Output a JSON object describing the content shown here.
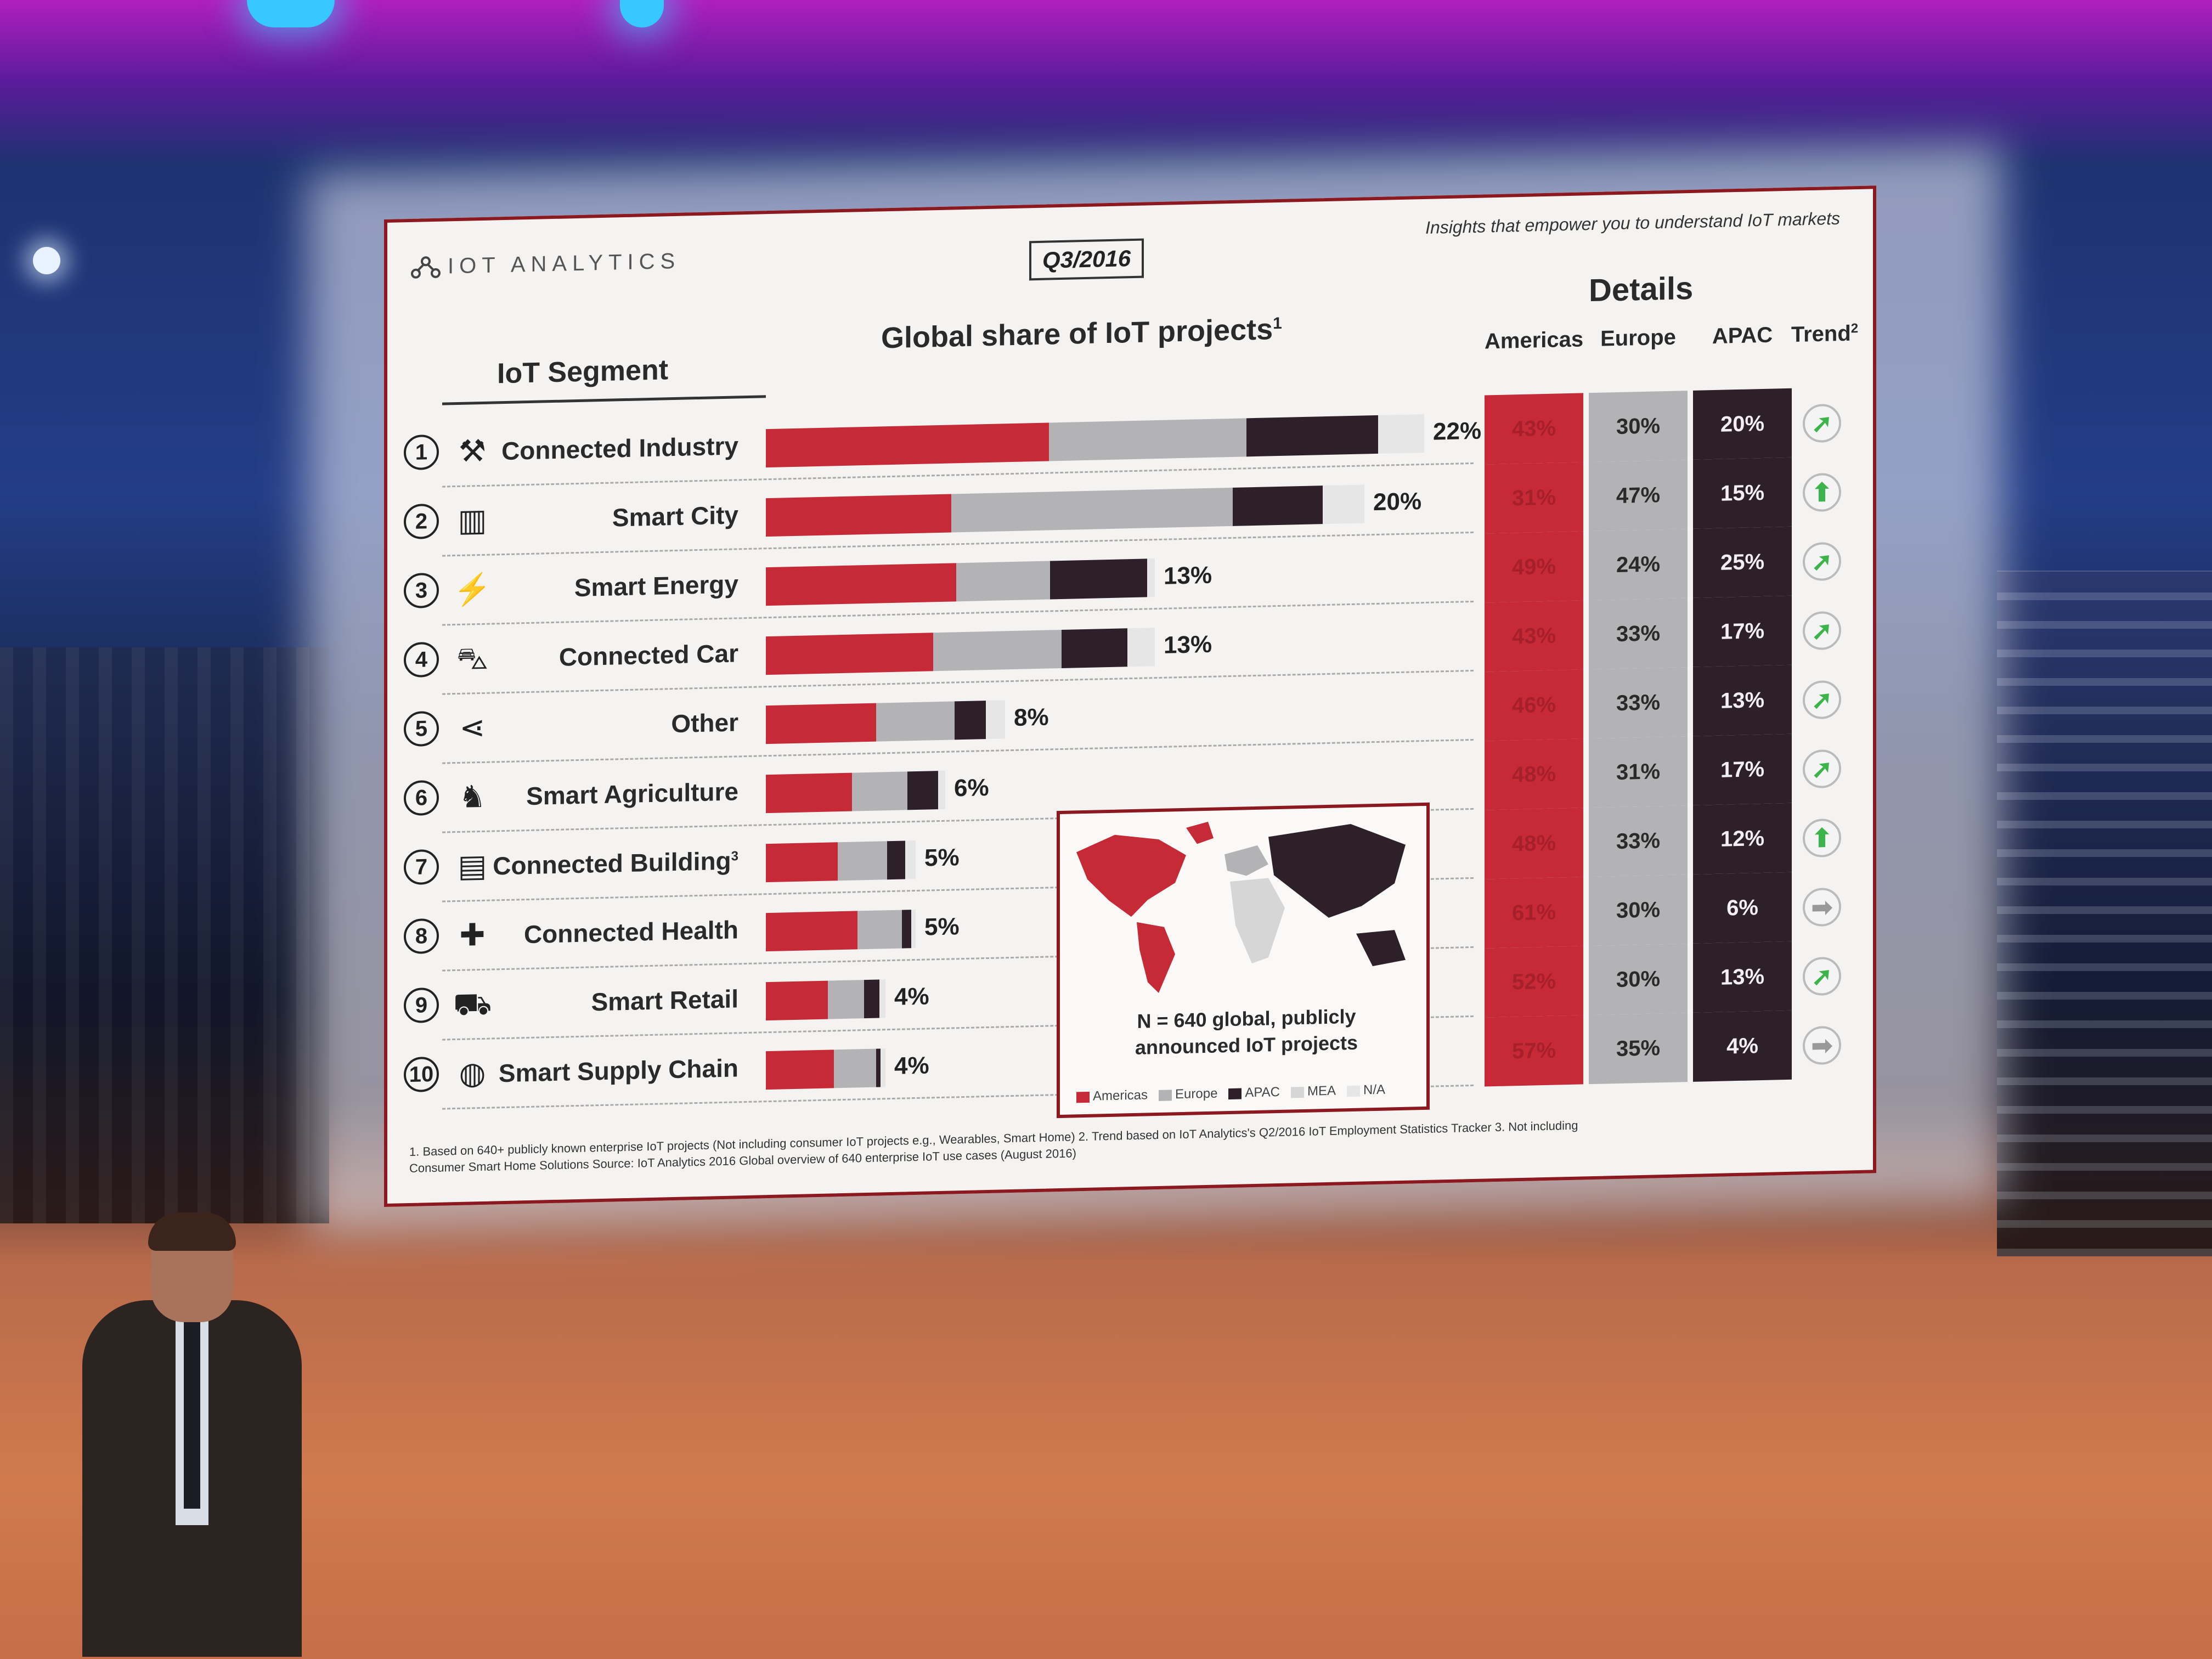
{
  "logo_text": "IOT ANALYTICS",
  "quarter": "Q3/2016",
  "tagline": "Insights that empower you to understand IoT markets",
  "headers": {
    "segment": "IoT Segment",
    "share": "Global share of IoT projects",
    "share_sup": "1",
    "details": "Details",
    "americas": "Americas",
    "europe": "Europe",
    "apac": "APAC",
    "trend": "Trend",
    "trend_sup": "2"
  },
  "colors": {
    "americas": "#c62a36",
    "europe": "#b3b3b6",
    "apac": "#2e2029",
    "mea": "#d6d6d6",
    "na": "#e6e6e6"
  },
  "segments": [
    {
      "num": "1",
      "icon": "excavator-icon",
      "glyph": "⚒",
      "label": "Connected Industry",
      "sup": "",
      "share_label": "22%",
      "share": 22,
      "am_label": "43%",
      "eu_label": "30%",
      "ap_label": "20%",
      "am": 43,
      "eu": 30,
      "ap": 20,
      "trend": "up-right",
      "trend_glyph": "➚"
    },
    {
      "num": "2",
      "icon": "city-icon",
      "glyph": "▥",
      "label": "Smart City",
      "sup": "",
      "share_label": "20%",
      "share": 20,
      "am_label": "31%",
      "eu_label": "47%",
      "ap_label": "15%",
      "am": 31,
      "eu": 47,
      "ap": 15,
      "trend": "up",
      "trend_glyph": "⬆"
    },
    {
      "num": "3",
      "icon": "plug-icon",
      "glyph": "⚡",
      "label": "Smart Energy",
      "sup": "",
      "share_label": "13%",
      "share": 13,
      "am_label": "49%",
      "eu_label": "24%",
      "ap_label": "25%",
      "am": 49,
      "eu": 24,
      "ap": 25,
      "trend": "up-right",
      "trend_glyph": "➚"
    },
    {
      "num": "4",
      "icon": "car-icon",
      "glyph": "⛍",
      "label": "Connected Car",
      "sup": "",
      "share_label": "13%",
      "share": 13,
      "am_label": "43%",
      "eu_label": "33%",
      "ap_label": "17%",
      "am": 43,
      "eu": 33,
      "ap": 17,
      "trend": "up-right",
      "trend_glyph": "➚"
    },
    {
      "num": "5",
      "icon": "share-icon",
      "glyph": "⋖",
      "label": "Other",
      "sup": "",
      "share_label": "8%",
      "share": 8,
      "am_label": "46%",
      "eu_label": "33%",
      "ap_label": "13%",
      "am": 46,
      "eu": 33,
      "ap": 13,
      "trend": "up-right",
      "trend_glyph": "➚"
    },
    {
      "num": "6",
      "icon": "cow-icon",
      "glyph": "♞",
      "label": "Smart Agriculture",
      "sup": "",
      "share_label": "6%",
      "share": 6,
      "am_label": "48%",
      "eu_label": "31%",
      "ap_label": "17%",
      "am": 48,
      "eu": 31,
      "ap": 17,
      "trend": "up-right",
      "trend_glyph": "➚"
    },
    {
      "num": "7",
      "icon": "building-icon",
      "glyph": "▤",
      "label": "Connected Building",
      "sup": "3",
      "share_label": "5%",
      "share": 5,
      "am_label": "48%",
      "eu_label": "33%",
      "ap_label": "12%",
      "am": 48,
      "eu": 33,
      "ap": 12,
      "trend": "up",
      "trend_glyph": "⬆"
    },
    {
      "num": "8",
      "icon": "medkit-icon",
      "glyph": "✚",
      "label": "Connected Health",
      "sup": "",
      "share_label": "5%",
      "share": 5,
      "am_label": "61%",
      "eu_label": "30%",
      "ap_label": "6%",
      "am": 61,
      "eu": 30,
      "ap": 6,
      "trend": "right",
      "trend_glyph": "➡"
    },
    {
      "num": "9",
      "icon": "cart-icon",
      "glyph": "⛟",
      "label": "Smart Retail",
      "sup": "",
      "share_label": "4%",
      "share": 4,
      "am_label": "52%",
      "eu_label": "30%",
      "ap_label": "13%",
      "am": 52,
      "eu": 30,
      "ap": 13,
      "trend": "up-right",
      "trend_glyph": "➚"
    },
    {
      "num": "10",
      "icon": "globe-truck-icon",
      "glyph": "◍",
      "label": "Smart Supply Chain",
      "sup": "",
      "share_label": "4%",
      "share": 4,
      "am_label": "57%",
      "eu_label": "35%",
      "ap_label": "4%",
      "am": 57,
      "eu": 35,
      "ap": 4,
      "trend": "right",
      "trend_glyph": "➡"
    }
  ],
  "map": {
    "line1": "N = 640 global, publicly",
    "line2": "announced IoT projects",
    "legend": [
      "Americas",
      "Europe",
      "APAC",
      "MEA",
      "N/A"
    ]
  },
  "footnote_1": "1. Based on 640+ publicly known enterprise IoT projects (Not including consumer IoT projects e.g., Wearables, Smart Home) 2. Trend based on IoT Analytics's Q2/2016 IoT Employment Statistics Tracker 3. Not including",
  "footnote_2": "Consumer Smart Home Solutions    Source: IoT Analytics 2016 Global overview of 640 enterprise IoT use cases (August 2016)"
}
